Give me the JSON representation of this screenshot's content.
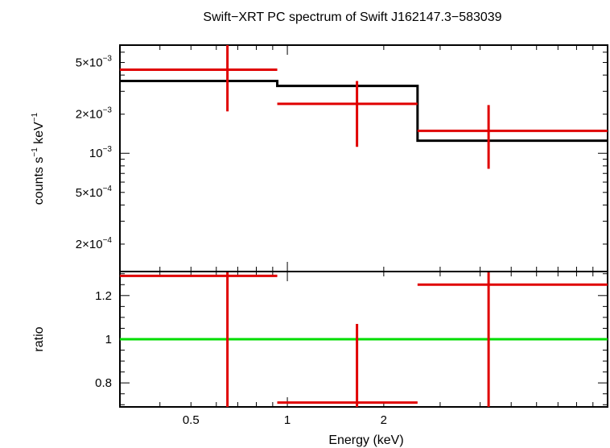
{
  "chart_data": [
    {
      "type": "scatter",
      "title": "Swift−XRT PC spectrum of Swift J162147.3−583039",
      "xlabel": "",
      "ylabel_main": "counts s",
      "ylabel_sup1": "−1",
      "ylabel_mid": " keV",
      "ylabel_sup2": "−1",
      "scale": "log-log",
      "xlim": [
        0.3,
        10
      ],
      "ylim": [
        0.000123,
        0.0068
      ],
      "yticks": [
        {
          "value": 0.005,
          "mant": "5×10",
          "exp": "−3"
        },
        {
          "value": 0.002,
          "mant": "2×10",
          "exp": "−3"
        },
        {
          "value": 0.001,
          "mant": "10",
          "exp": "−3"
        },
        {
          "value": 0.0005,
          "mant": "5×10",
          "exp": "−4"
        },
        {
          "value": 0.0002,
          "mant": "2×10",
          "exp": "−4"
        }
      ],
      "series": [
        {
          "color": "#e00000",
          "points": [
            {
              "x": 0.65,
              "xlo": 0.3,
              "xhi": 0.93,
              "y": 0.0044,
              "ylo": 0.0021,
              "yhi": 0.0068
            },
            {
              "x": 1.65,
              "xlo": 0.93,
              "xhi": 2.55,
              "y": 0.0024,
              "ylo": 0.00112,
              "yhi": 0.0036
            },
            {
              "x": 4.25,
              "xlo": 2.55,
              "xhi": 10,
              "y": 0.00149,
              "ylo": 0.00076,
              "yhi": 0.00235
            }
          ]
        },
        {
          "color": "#000000",
          "steps": [
            {
              "xlo": 0.3,
              "xhi": 0.93,
              "y": 0.0036
            },
            {
              "xlo": 0.93,
              "xhi": 2.55,
              "y": 0.0033
            },
            {
              "xlo": 2.55,
              "xhi": 10,
              "y": 0.00125
            }
          ]
        }
      ]
    },
    {
      "type": "scatter",
      "xlabel": "Energy (keV)",
      "ylabel": "ratio",
      "x_scale": "log",
      "xlim": [
        0.3,
        10
      ],
      "ylim": [
        0.69,
        1.31
      ],
      "xticks": [
        {
          "value": 0.5,
          "label": "0.5"
        },
        {
          "value": 1,
          "label": "1"
        },
        {
          "value": 2,
          "label": "2"
        }
      ],
      "yticks": [
        {
          "value": 1.2,
          "label": "1.2"
        },
        {
          "value": 1,
          "label": "1"
        },
        {
          "value": 0.8,
          "label": "0.8"
        }
      ],
      "series": [
        {
          "color": "#e00000",
          "points": [
            {
              "x": 0.65,
              "xlo": 0.3,
              "xhi": 0.93,
              "y": 1.29,
              "ylo": 0.69,
              "yhi": 1.31
            },
            {
              "x": 1.65,
              "xlo": 0.93,
              "xhi": 2.55,
              "y": 0.71,
              "ylo": 0.69,
              "yhi": 1.07
            },
            {
              "x": 4.25,
              "xlo": 2.55,
              "xhi": 10,
              "y": 1.25,
              "ylo": 0.69,
              "yhi": 1.31
            }
          ]
        },
        {
          "color": "#00dd00",
          "reference_line": 1
        }
      ]
    }
  ]
}
